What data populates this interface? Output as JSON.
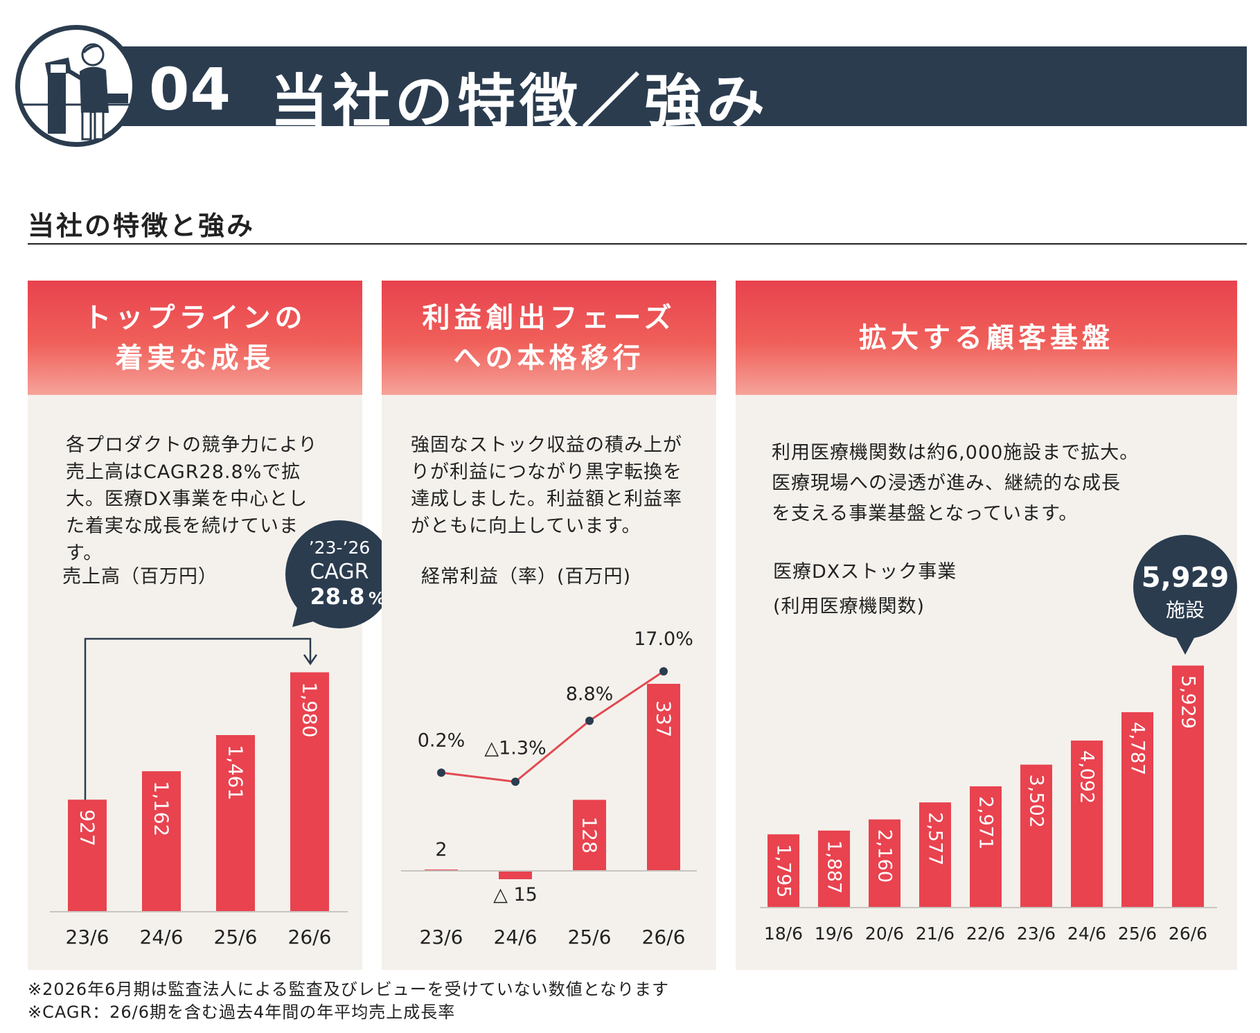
{
  "header": {
    "number": "04",
    "title": "当社の特徴／強み"
  },
  "section_title": "当社の特徴と強み",
  "panels": [
    {
      "heading": "トップラインの\n着実な成長",
      "text": "各プロダクトの競争力により\n売上高はCAGR28.8%で拡\n大。医療DX事業を中心とし\nた着実な成長を続けていま\nす。",
      "label": "売上高（百万円）",
      "callout": {
        "line1": "’23-’26",
        "line2": "CAGR",
        "value": "28.8",
        "unit": "%"
      }
    },
    {
      "heading": "利益創出フェーズ\nへの本格移行",
      "text": "強固なストック収益の積み上が\nりが利益につながり黒字転換を\n達成しました。利益額と利益率\nがともに向上しています。",
      "label": "経常利益（率）(百万円)"
    },
    {
      "heading": "拡大する顧客基盤",
      "text": "利用医療機関数は約6,000施設まで拡大。\n医療現場への浸透が進み、継続的な成長\nを支える事業基盤となっています。",
      "label": "医療DXストック事業\n(利用医療機関数)",
      "callout": {
        "value": "5,929",
        "unit": "施設"
      }
    }
  ],
  "chart_data": [
    {
      "type": "bar",
      "title": "売上高（百万円）",
      "categories": [
        "23/6",
        "24/6",
        "25/6",
        "26/6"
      ],
      "values": [
        927,
        1162,
        1461,
        1980
      ],
      "value_labels": [
        "927",
        "1,162",
        "1,461",
        "1,980"
      ],
      "ylim": [
        0,
        2200
      ]
    },
    {
      "type": "bar+line",
      "title": "経常利益（率）(百万円)",
      "categories": [
        "23/6",
        "24/6",
        "25/6",
        "26/6"
      ],
      "series": [
        {
          "values": [
            2,
            -15,
            128,
            337
          ],
          "labels": [
            "2",
            "△ 15",
            "128",
            "337"
          ]
        },
        {
          "values": [
            0.2,
            -1.3,
            8.8,
            17.0
          ],
          "labels": [
            "0.2%",
            "△1.3%",
            "8.8%",
            "17.0%"
          ]
        }
      ]
    },
    {
      "type": "bar",
      "title": "医療DXストック事業(利用医療機関数)",
      "categories": [
        "18/6",
        "19/6",
        "20/6",
        "21/6",
        "22/6",
        "23/6",
        "24/6",
        "25/6",
        "26/6"
      ],
      "values": [
        1795,
        1887,
        2160,
        2577,
        2971,
        3502,
        4092,
        4787,
        5929
      ],
      "value_labels": [
        "1,795",
        "1,887",
        "2,160",
        "2,577",
        "2,971",
        "3,502",
        "4,092",
        "4,787",
        "5,929"
      ],
      "ylim": [
        0,
        6500
      ]
    }
  ],
  "colors": {
    "accent": "#e8434f",
    "navy": "#2b3c4f",
    "panel_bg": "#f4f1ec",
    "line": "#e04a52"
  },
  "footnotes": [
    "※2026年6月期は監査法人による監査及びレビューを受けていない数値となります",
    "※CAGR：26/6期を含む過去4年間の年平均売上成長率"
  ]
}
